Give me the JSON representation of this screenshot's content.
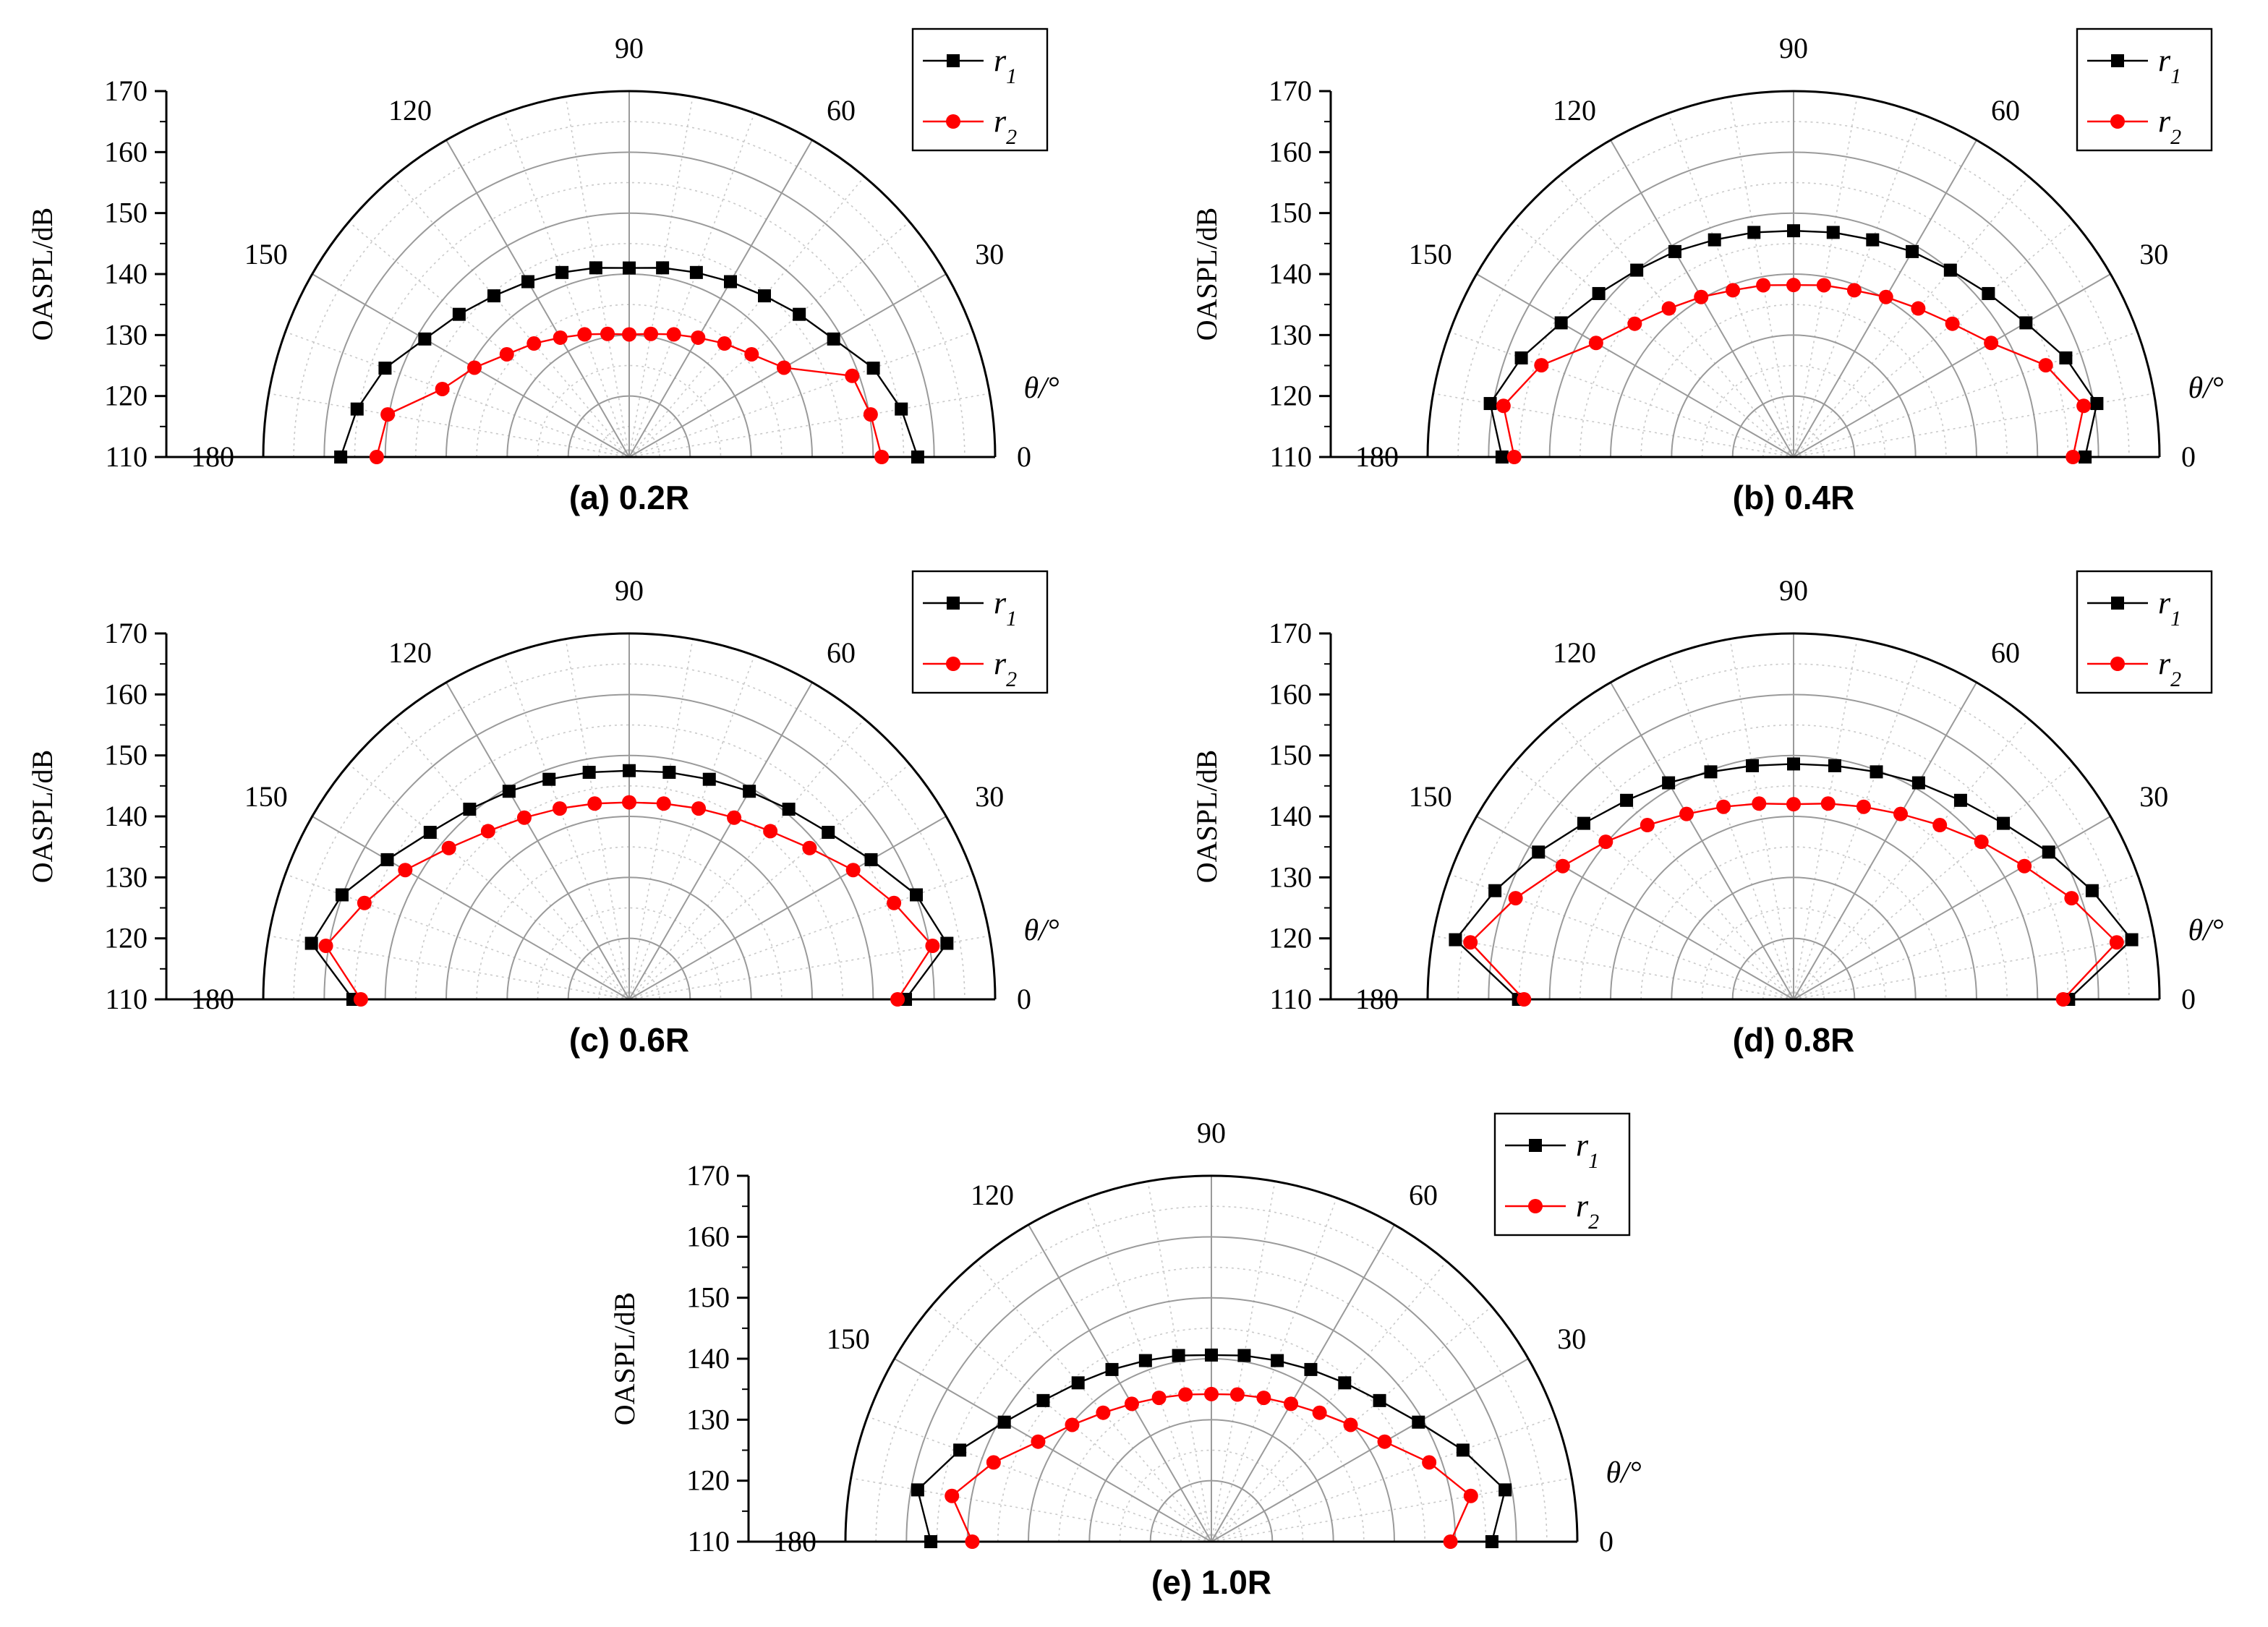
{
  "chart_data": [
    {
      "type": "polar",
      "caption": "(a) 0.2R",
      "angle_label": "θ/°",
      "radial_label": "OASPL/dB",
      "radial_ticks": [
        "110",
        "120",
        "130",
        "140",
        "150",
        "160",
        "170"
      ],
      "rlim": [
        110,
        170
      ],
      "angle_ticks": [
        "0",
        "30",
        "60",
        "90",
        "120",
        "150",
        "180"
      ],
      "angles": [
        0,
        10,
        20,
        30,
        40,
        50,
        60,
        70,
        80,
        90,
        100,
        110,
        120,
        130,
        140,
        150,
        160,
        170,
        180
      ],
      "grid": true,
      "legend_position": "top-right",
      "colors": {
        "r1": "#000000",
        "r2": "#ff0000"
      },
      "series": [
        {
          "name": "r1",
          "marker": "square",
          "values": [
            157.3,
            155.3,
            152.6,
            148.7,
            146.4,
            144.5,
            143.2,
            142.2,
            141.5,
            141.0,
            141.5,
            142.2,
            143.2,
            144.5,
            146.4,
            148.7,
            152.6,
            155.3,
            157.3
          ]
        },
        {
          "name": "r2",
          "marker": "circle",
          "values": [
            151.4,
            150.2,
            148.9,
            139.3,
            136.2,
            134.3,
            132.6,
            131.4,
            130.5,
            130.1,
            130.5,
            131.4,
            132.6,
            134.3,
            136.2,
            139.3,
            142.6,
            150.2,
            151.4
          ]
        }
      ]
    },
    {
      "type": "polar",
      "caption": "(b) 0.4R",
      "angle_label": "θ/°",
      "radial_label": "OASPL/dB",
      "radial_ticks": [
        "110",
        "120",
        "130",
        "140",
        "150",
        "160",
        "170"
      ],
      "rlim": [
        110,
        170
      ],
      "angle_ticks": [
        "0",
        "30",
        "60",
        "90",
        "120",
        "150",
        "180"
      ],
      "angles": [
        0,
        10,
        20,
        30,
        40,
        50,
        60,
        70,
        80,
        90,
        100,
        110,
        120,
        130,
        140,
        150,
        160,
        170,
        180
      ],
      "grid": true,
      "legend_position": "top-right",
      "colors": {
        "r1": "#000000",
        "r2": "#ff0000"
      },
      "series": [
        {
          "name": "r1",
          "marker": "square",
          "values": [
            157.8,
            160.5,
            157.5,
            154.0,
            151.7,
            150.0,
            148.9,
            147.9,
            147.4,
            147.1,
            147.4,
            147.9,
            148.9,
            150.0,
            151.7,
            154.0,
            157.5,
            160.5,
            157.8
          ]
        },
        {
          "name": "r2",
          "marker": "circle",
          "values": [
            155.8,
            158.3,
            154.0,
            147.4,
            144.0,
            141.8,
            140.3,
            139.1,
            138.6,
            138.2,
            138.6,
            139.1,
            140.3,
            141.8,
            144.0,
            147.4,
            154.0,
            158.3,
            155.8
          ]
        }
      ]
    },
    {
      "type": "polar",
      "caption": "(c) 0.6R",
      "angle_label": "θ/°",
      "radial_label": "OASPL/dB",
      "radial_ticks": [
        "110",
        "120",
        "130",
        "140",
        "150",
        "160",
        "170"
      ],
      "rlim": [
        110,
        170
      ],
      "angle_ticks": [
        "0",
        "30",
        "60",
        "90",
        "120",
        "150",
        "180"
      ],
      "angles": [
        0,
        10,
        20,
        30,
        40,
        50,
        60,
        70,
        80,
        90,
        100,
        110,
        120,
        130,
        140,
        150,
        160,
        170,
        180
      ],
      "grid": true,
      "legend_position": "top-right",
      "colors": {
        "r1": "#000000",
        "r2": "#ff0000"
      },
      "series": [
        {
          "name": "r1",
          "marker": "square",
          "values": [
            155.3,
            162.9,
            160.1,
            155.8,
            152.6,
            150.7,
            149.4,
            148.4,
            147.8,
            147.5,
            147.8,
            148.4,
            149.4,
            150.7,
            152.6,
            155.8,
            160.1,
            162.9,
            155.3
          ]
        },
        {
          "name": "r2",
          "marker": "circle",
          "values": [
            154.0,
            160.5,
            156.2,
            152.4,
            148.6,
            146.0,
            144.4,
            143.3,
            142.6,
            142.3,
            142.6,
            143.3,
            144.4,
            146.0,
            148.6,
            152.4,
            156.2,
            160.5,
            154.0
          ]
        }
      ]
    },
    {
      "type": "polar",
      "caption": "(d) 0.8R",
      "angle_label": "θ/°",
      "radial_label": "OASPL/dB",
      "radial_ticks": [
        "110",
        "120",
        "130",
        "140",
        "150",
        "160",
        "170"
      ],
      "rlim": [
        110,
        170
      ],
      "angle_ticks": [
        "0",
        "30",
        "60",
        "90",
        "120",
        "150",
        "180"
      ],
      "angles": [
        0,
        10,
        20,
        30,
        40,
        50,
        60,
        70,
        80,
        90,
        100,
        110,
        120,
        130,
        140,
        150,
        160,
        170,
        180
      ],
      "grid": true,
      "legend_position": "top-right",
      "colors": {
        "r1": "#000000",
        "r2": "#ff0000"
      },
      "series": [
        {
          "name": "r1",
          "marker": "square",
          "values": [
            155.1,
            166.3,
            162.1,
            158.3,
            154.9,
            152.6,
            151.0,
            149.7,
            148.9,
            148.6,
            148.9,
            149.7,
            151.0,
            152.6,
            154.9,
            158.3,
            162.1,
            166.3,
            155.1
          ]
        },
        {
          "name": "r2",
          "marker": "circle",
          "values": [
            154.2,
            163.8,
            158.5,
            153.7,
            150.2,
            147.3,
            145.1,
            143.6,
            142.6,
            142.0,
            142.6,
            143.6,
            145.1,
            147.3,
            150.2,
            153.7,
            158.5,
            163.8,
            154.2
          ]
        }
      ]
    },
    {
      "type": "polar",
      "caption": "(e) 1.0R",
      "angle_label": "θ/°",
      "radial_label": "OASPL/dB",
      "radial_ticks": [
        "110",
        "120",
        "130",
        "140",
        "150",
        "160",
        "170"
      ],
      "rlim": [
        110,
        170
      ],
      "angle_ticks": [
        "0",
        "30",
        "60",
        "90",
        "120",
        "150",
        "180"
      ],
      "angles": [
        0,
        10,
        20,
        30,
        40,
        50,
        60,
        70,
        80,
        90,
        100,
        110,
        120,
        130,
        140,
        150,
        160,
        170,
        180
      ],
      "grid": true,
      "legend_position": "top-right",
      "colors": {
        "r1": "#000000",
        "r2": "#ff0000"
      },
      "series": [
        {
          "name": "r1",
          "marker": "square",
          "values": [
            156.0,
            158.9,
            153.9,
            149.2,
            146.0,
            144.0,
            142.6,
            141.6,
            141.0,
            140.6,
            141.0,
            141.6,
            142.6,
            144.0,
            146.0,
            149.2,
            153.9,
            158.9,
            156.0
          ]
        },
        {
          "name": "r2",
          "marker": "circle",
          "values": [
            149.2,
            153.2,
            148.0,
            142.8,
            139.8,
            137.6,
            136.1,
            135.1,
            134.5,
            134.2,
            134.5,
            135.1,
            136.1,
            137.6,
            139.8,
            142.8,
            148.0,
            153.2,
            149.2
          ]
        }
      ]
    }
  ]
}
